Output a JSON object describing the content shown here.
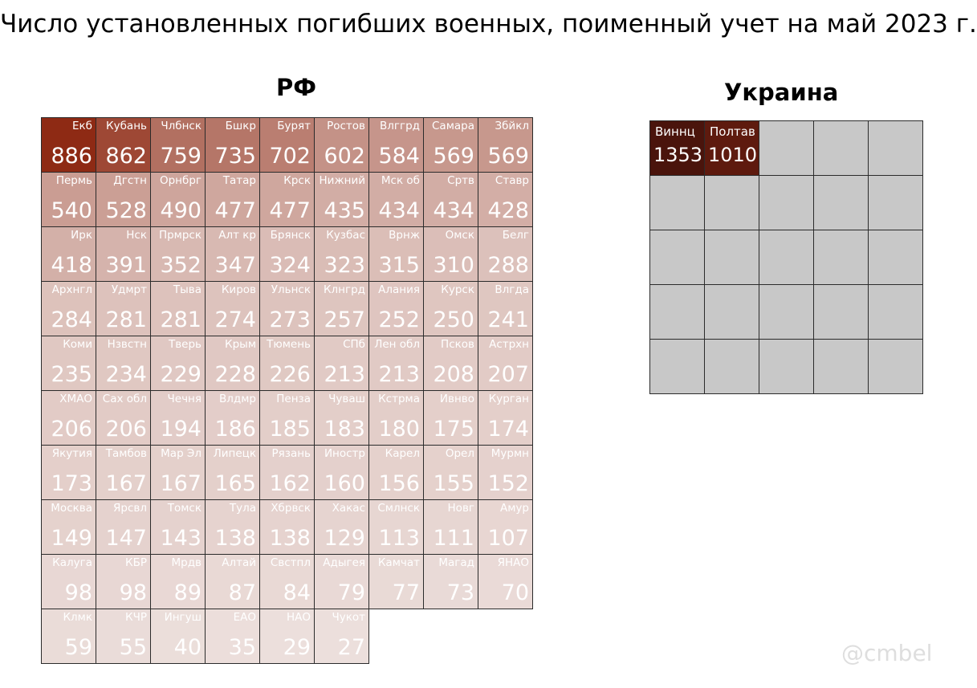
{
  "title": "Число установленных погибших военных, поименный учет на май 2023 г.",
  "watermark": "@cmbel",
  "chart_data": [
    {
      "type": "heatmap",
      "title": "РФ",
      "columns": 9,
      "color_scale": {
        "max_color": "#8e2a14",
        "min_color": "#ecdfdc"
      },
      "cells": [
        {
          "label": "Екб",
          "value": 886
        },
        {
          "label": "Кубань",
          "value": 862
        },
        {
          "label": "Члбнск",
          "value": 759
        },
        {
          "label": "Бшкр",
          "value": 735
        },
        {
          "label": "Бурят",
          "value": 702
        },
        {
          "label": "Ростов",
          "value": 602
        },
        {
          "label": "Влггрд",
          "value": 584
        },
        {
          "label": "Самара",
          "value": 569
        },
        {
          "label": "Збйкл",
          "value": 569
        },
        {
          "label": "Пермь",
          "value": 540
        },
        {
          "label": "Дгстн",
          "value": 528
        },
        {
          "label": "Орнбрг",
          "value": 490
        },
        {
          "label": "Татар",
          "value": 477
        },
        {
          "label": "Крск",
          "value": 477
        },
        {
          "label": "Нижний",
          "value": 435
        },
        {
          "label": "Мск об",
          "value": 434
        },
        {
          "label": "Сртв",
          "value": 434
        },
        {
          "label": "Ставр",
          "value": 428
        },
        {
          "label": "Ирк",
          "value": 418
        },
        {
          "label": "Нск",
          "value": 391
        },
        {
          "label": "Прмрск",
          "value": 352
        },
        {
          "label": "Алт кр",
          "value": 347
        },
        {
          "label": "Брянск",
          "value": 324
        },
        {
          "label": "Кузбас",
          "value": 323
        },
        {
          "label": "Врнж",
          "value": 315
        },
        {
          "label": "Омск",
          "value": 310
        },
        {
          "label": "Белг",
          "value": 288
        },
        {
          "label": "Архнгл",
          "value": 284
        },
        {
          "label": "Удмрт",
          "value": 281
        },
        {
          "label": "Тыва",
          "value": 281
        },
        {
          "label": "Киров",
          "value": 274
        },
        {
          "label": "Ульнск",
          "value": 273
        },
        {
          "label": "Клнгрд",
          "value": 257
        },
        {
          "label": "Алания",
          "value": 252
        },
        {
          "label": "Курск",
          "value": 250
        },
        {
          "label": "Влгда",
          "value": 241
        },
        {
          "label": "Коми",
          "value": 235
        },
        {
          "label": "Нзвстн",
          "value": 234
        },
        {
          "label": "Тверь",
          "value": 229
        },
        {
          "label": "Крым",
          "value": 228
        },
        {
          "label": "Тюмень",
          "value": 226
        },
        {
          "label": "СПб",
          "value": 213
        },
        {
          "label": "Лен обл",
          "value": 213
        },
        {
          "label": "Псков",
          "value": 208
        },
        {
          "label": "Астрхн",
          "value": 207
        },
        {
          "label": "ХМАО",
          "value": 206
        },
        {
          "label": "Сах обл",
          "value": 206
        },
        {
          "label": "Чечня",
          "value": 194
        },
        {
          "label": "Влдмр",
          "value": 186
        },
        {
          "label": "Пенза",
          "value": 185
        },
        {
          "label": "Чуваш",
          "value": 183
        },
        {
          "label": "Кстрма",
          "value": 180
        },
        {
          "label": "Ивнво",
          "value": 175
        },
        {
          "label": "Курган",
          "value": 174
        },
        {
          "label": "Якутия",
          "value": 173
        },
        {
          "label": "Тамбов",
          "value": 167
        },
        {
          "label": "Мар Эл",
          "value": 167
        },
        {
          "label": "Липецк",
          "value": 165
        },
        {
          "label": "Рязань",
          "value": 162
        },
        {
          "label": "Иностр",
          "value": 160
        },
        {
          "label": "Карел",
          "value": 156
        },
        {
          "label": "Орел",
          "value": 155
        },
        {
          "label": "Мурмн",
          "value": 152
        },
        {
          "label": "Москва",
          "value": 149
        },
        {
          "label": "Ярсвл",
          "value": 147
        },
        {
          "label": "Томск",
          "value": 143
        },
        {
          "label": "Тула",
          "value": 138
        },
        {
          "label": "Хбрвск",
          "value": 138
        },
        {
          "label": "Хакас",
          "value": 129
        },
        {
          "label": "Смлнск",
          "value": 113
        },
        {
          "label": "Новг",
          "value": 111
        },
        {
          "label": "Амур",
          "value": 107
        },
        {
          "label": "Калуга",
          "value": 98
        },
        {
          "label": "КБР",
          "value": 98
        },
        {
          "label": "Мрдв",
          "value": 89
        },
        {
          "label": "Алтай",
          "value": 87
        },
        {
          "label": "Свстпл",
          "value": 84
        },
        {
          "label": "Адыгея",
          "value": 79
        },
        {
          "label": "Камчат",
          "value": 77
        },
        {
          "label": "Магад",
          "value": 73
        },
        {
          "label": "ЯНАО",
          "value": 70
        },
        {
          "label": "Клмк",
          "value": 59
        },
        {
          "label": "КЧР",
          "value": 55
        },
        {
          "label": "Ингуш",
          "value": 40
        },
        {
          "label": "ЕАО",
          "value": 35
        },
        {
          "label": "НАО",
          "value": 29
        },
        {
          "label": "Чукот",
          "value": 27
        }
      ]
    },
    {
      "type": "heatmap",
      "title": "Украина",
      "columns": 5,
      "empty_cells": 23,
      "color_scale": {
        "max_color": "#4a140c",
        "min_color": "#5e1a0e",
        "empty_color": "#c8c8c8"
      },
      "cells": [
        {
          "label": "Виннц",
          "value": 1353
        },
        {
          "label": "Полтав",
          "value": 1010
        }
      ]
    }
  ]
}
